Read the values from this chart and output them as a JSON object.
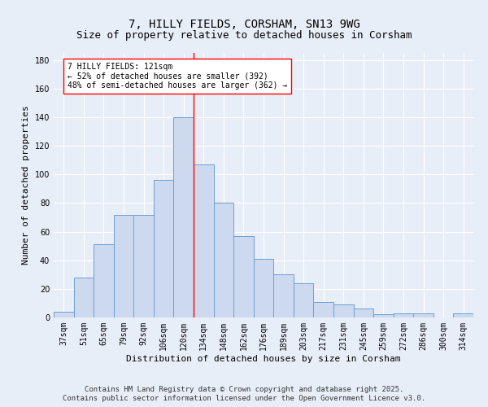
{
  "title": "7, HILLY FIELDS, CORSHAM, SN13 9WG",
  "subtitle": "Size of property relative to detached houses in Corsham",
  "xlabel": "Distribution of detached houses by size in Corsham",
  "ylabel": "Number of detached properties",
  "categories": [
    "37sqm",
    "51sqm",
    "65sqm",
    "79sqm",
    "92sqm",
    "106sqm",
    "120sqm",
    "134sqm",
    "148sqm",
    "162sqm",
    "176sqm",
    "189sqm",
    "203sqm",
    "217sqm",
    "231sqm",
    "245sqm",
    "259sqm",
    "272sqm",
    "286sqm",
    "300sqm",
    "314sqm"
  ],
  "values": [
    4,
    28,
    51,
    72,
    72,
    96,
    140,
    107,
    80,
    57,
    41,
    30,
    24,
    11,
    9,
    6,
    2,
    3,
    3,
    0,
    3
  ],
  "bar_color": "#ccd9ef",
  "bar_edge_color": "#6b9fd4",
  "vline_x": 6.5,
  "vline_color": "red",
  "annotation_text": "7 HILLY FIELDS: 121sqm\n← 52% of detached houses are smaller (392)\n48% of semi-detached houses are larger (362) →",
  "annotation_box_color": "white",
  "annotation_box_edge_color": "red",
  "ylim": [
    0,
    185
  ],
  "yticks": [
    0,
    20,
    40,
    60,
    80,
    100,
    120,
    140,
    160,
    180
  ],
  "footer1": "Contains HM Land Registry data © Crown copyright and database right 2025.",
  "footer2": "Contains public sector information licensed under the Open Government Licence v3.0.",
  "background_color": "#e8eef8",
  "plot_bg_color": "#e8eef8",
  "grid_color": "white",
  "title_fontsize": 10,
  "subtitle_fontsize": 9,
  "axis_label_fontsize": 8,
  "tick_fontsize": 7,
  "annotation_fontsize": 7,
  "footer_fontsize": 6.5
}
